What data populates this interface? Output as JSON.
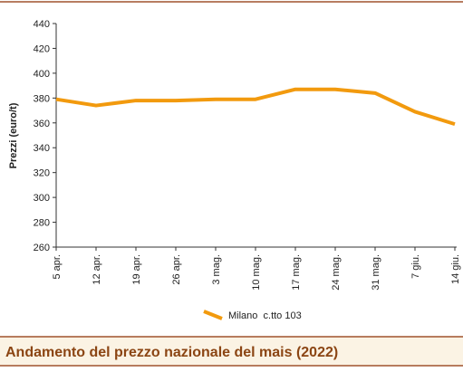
{
  "chart_data": {
    "type": "line",
    "title": "Andamento del prezzo nazionale del mais (2022)",
    "y_label": "Prezzi (euro/t)",
    "categories": [
      "5 apr.",
      "12 apr.",
      "19 apr.",
      "26 apr.",
      "3 mag.",
      "10 mag.",
      "17 mag.",
      "24 mag.",
      "31 mag.",
      "7 giu.",
      "14 giu."
    ],
    "series": [
      {
        "name": "Milano  c.tto 103",
        "color": "#f29a0e",
        "values": [
          379,
          374,
          378,
          378,
          379,
          379,
          387,
          387,
          384,
          369,
          359
        ]
      }
    ],
    "ylim": [
      260,
      440
    ],
    "yticks": [
      260,
      280,
      300,
      320,
      340,
      360,
      380,
      400,
      420,
      440
    ]
  }
}
